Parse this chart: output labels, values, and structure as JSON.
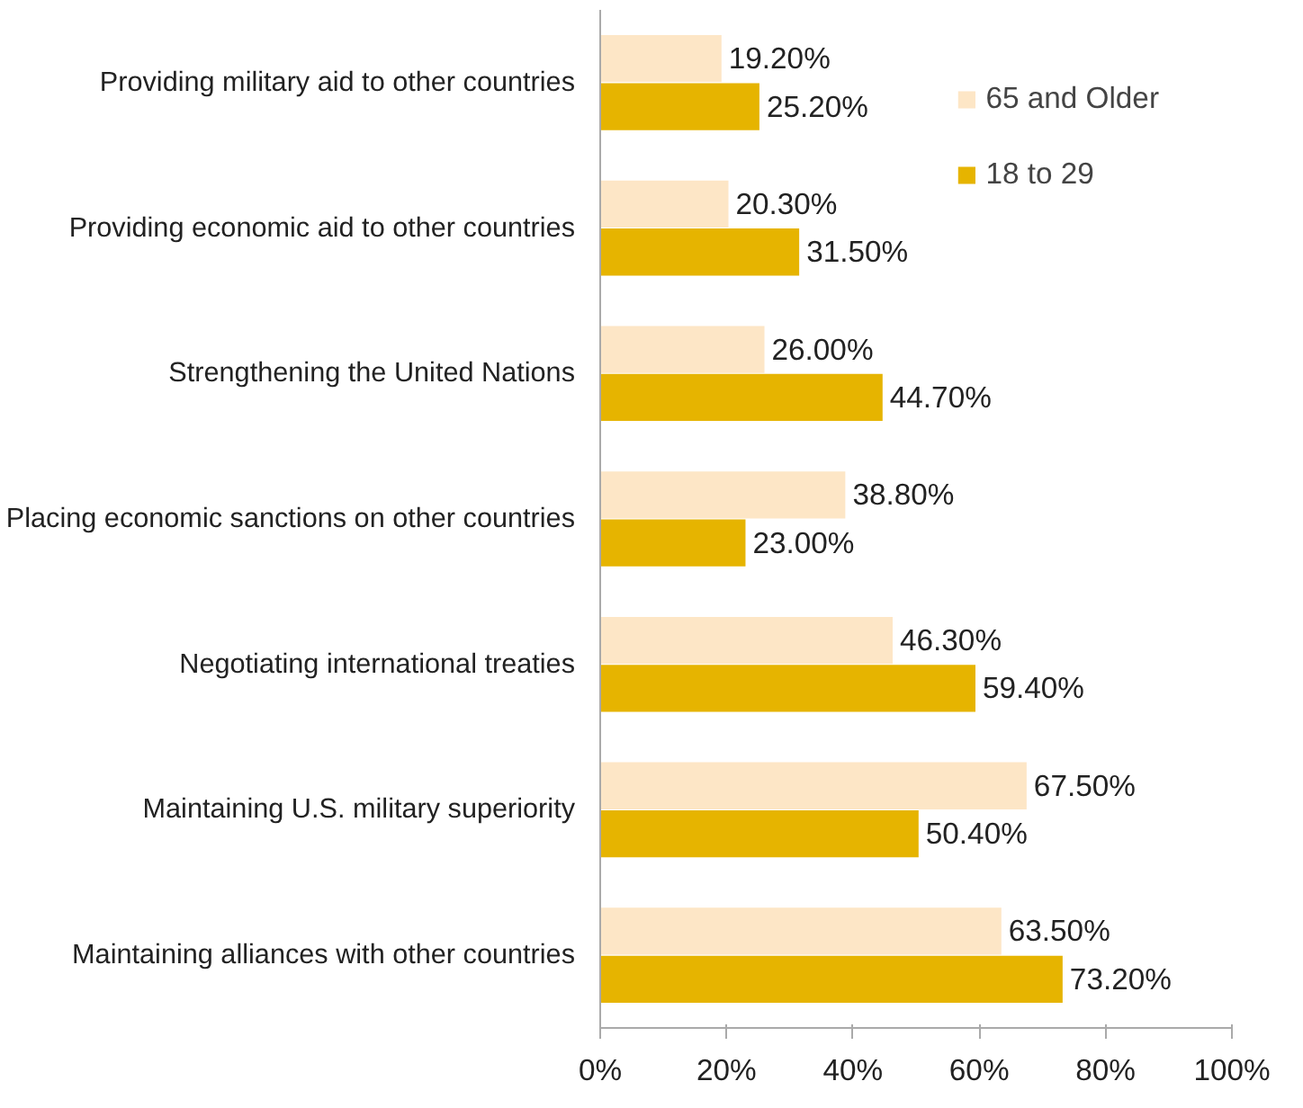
{
  "chart_data": {
    "type": "bar",
    "orientation": "horizontal",
    "categories": [
      "Providing military aid to other countries",
      "Providing economic aid to other countries",
      "Strengthening the United Nations",
      "Placing economic sanctions on other countries",
      "Negotiating international treaties",
      "Maintaining U.S. military superiority",
      "Maintaining alliances with other countries"
    ],
    "series": [
      {
        "name": "65 and Older",
        "color": "#fde6c6",
        "values": [
          19.2,
          20.3,
          26.0,
          38.8,
          46.3,
          67.5,
          63.5
        ],
        "value_labels": [
          "19.20%",
          "20.30%",
          "26.00%",
          "38.80%",
          "46.30%",
          "67.50%",
          "63.50%"
        ]
      },
      {
        "name": "18 to 29",
        "color": "#e6b400",
        "values": [
          25.2,
          31.5,
          44.7,
          23.0,
          59.4,
          50.4,
          73.2
        ],
        "value_labels": [
          "25.20%",
          "31.50%",
          "44.70%",
          "23.00%",
          "59.40%",
          "50.40%",
          "73.20%"
        ]
      }
    ],
    "xlim": [
      0,
      100
    ],
    "xticks": [
      {
        "value": 0,
        "label": "0%"
      },
      {
        "value": 20,
        "label": "20%"
      },
      {
        "value": 40,
        "label": "40%"
      },
      {
        "value": 60,
        "label": "60%"
      },
      {
        "value": 80,
        "label": "80%"
      },
      {
        "value": 100,
        "label": "100%"
      }
    ],
    "legend": "top right",
    "grid": false
  }
}
